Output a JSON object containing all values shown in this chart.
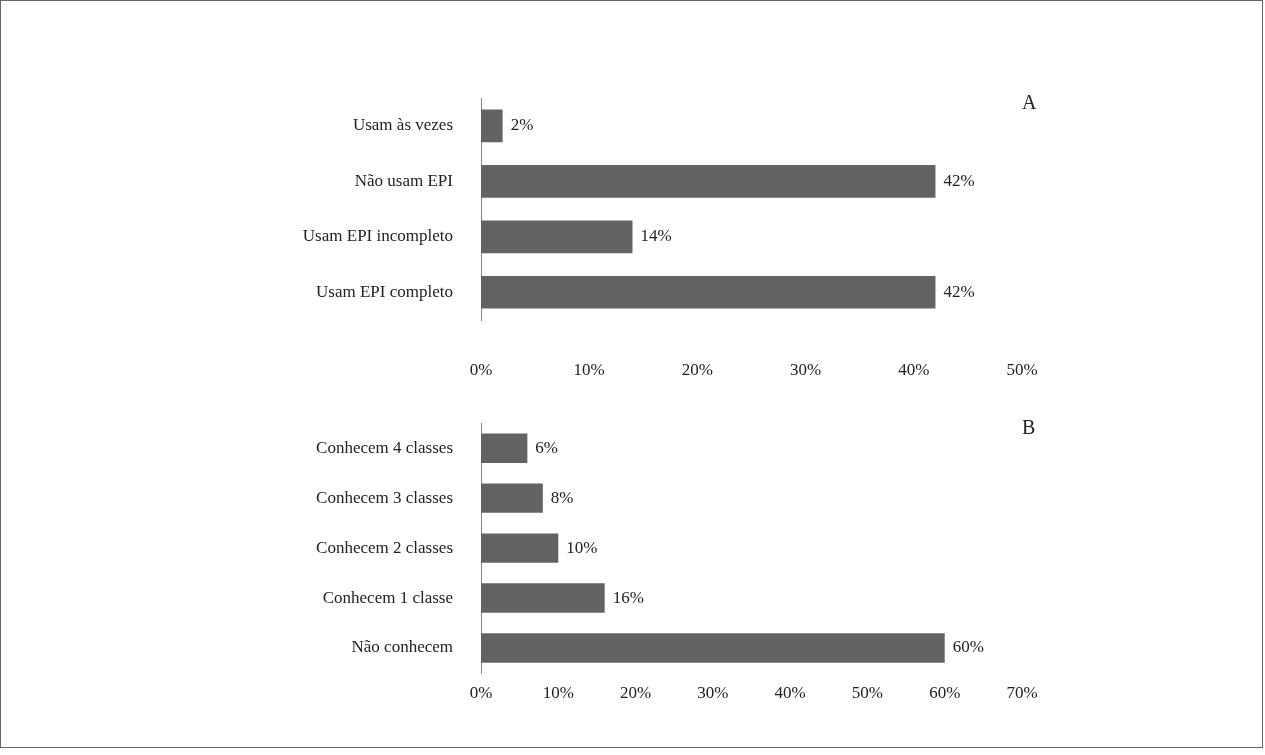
{
  "chart_data": [
    {
      "type": "bar",
      "orientation": "horizontal",
      "title": "A",
      "grid": false,
      "color": "#636363",
      "categories": [
        "Usam às vezes",
        "Não usam EPI",
        "Usam EPI incompleto",
        "Usam EPI completo"
      ],
      "values": [
        2,
        42,
        14,
        42
      ],
      "value_labels": [
        "2%",
        "42%",
        "14%",
        "42%"
      ],
      "xlim": [
        0,
        50
      ],
      "xticks": [
        {
          "value": 0,
          "label": "0%"
        },
        {
          "value": 10,
          "label": "10%"
        },
        {
          "value": 20,
          "label": "20%"
        },
        {
          "value": 30,
          "label": "30%"
        },
        {
          "value": 40,
          "label": "40%"
        },
        {
          "value": 50,
          "label": "50%"
        }
      ]
    },
    {
      "type": "bar",
      "orientation": "horizontal",
      "title": "B",
      "grid": false,
      "color": "#636363",
      "categories": [
        "Conhecem 4 classes",
        "Conhecem 3 classes",
        "Conhecem 2 classes",
        "Conhecem 1 classe",
        "Não conhecem"
      ],
      "values": [
        6,
        8,
        10,
        16,
        60
      ],
      "value_labels": [
        "6%",
        "8%",
        "10%",
        "16%",
        "60%"
      ],
      "xlim": [
        0,
        70
      ],
      "xticks": [
        {
          "value": 0,
          "label": "0%"
        },
        {
          "value": 10,
          "label": "10%"
        },
        {
          "value": 20,
          "label": "20%"
        },
        {
          "value": 30,
          "label": "30%"
        },
        {
          "value": 40,
          "label": "40%"
        },
        {
          "value": 50,
          "label": "50%"
        },
        {
          "value": 60,
          "label": "60%"
        },
        {
          "value": 70,
          "label": "70%"
        }
      ]
    }
  ]
}
